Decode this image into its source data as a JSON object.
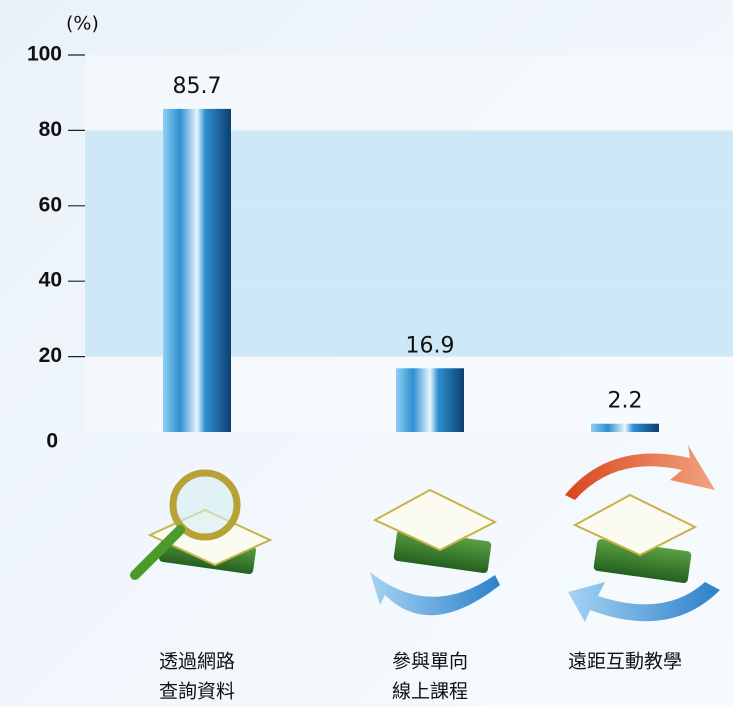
{
  "chart_data": {
    "type": "bar",
    "y_label": "(%)",
    "categories": [
      [
        "透過網路",
        "查詢資料"
      ],
      [
        "參與單向",
        "線上課程"
      ],
      [
        "遠距互動教學"
      ]
    ],
    "values": [
      85.7,
      16.9,
      2.2
    ],
    "color": "#2f8fd0",
    "ylim": [
      0,
      100
    ],
    "yticks": [
      0,
      20,
      40,
      60,
      80,
      100
    ],
    "grid": "bands"
  }
}
